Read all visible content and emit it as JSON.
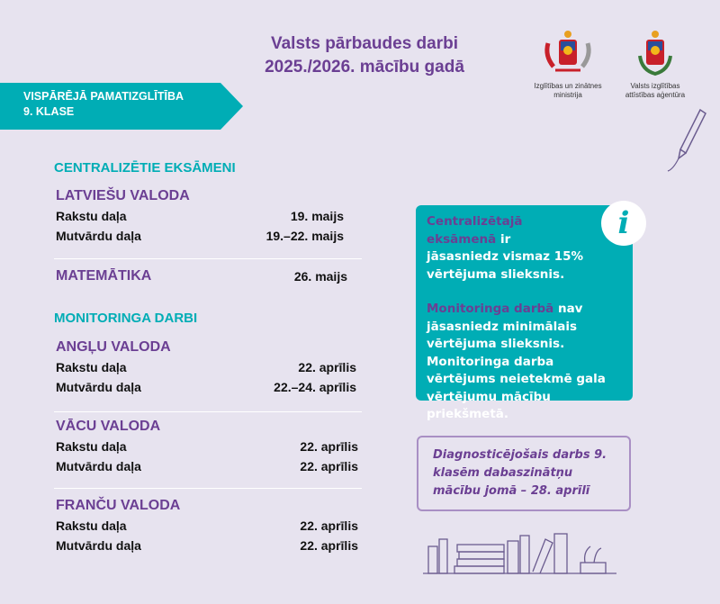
{
  "header": {
    "title_line1": "Valsts pārbaudes darbi",
    "title_line2": "2025./2026. mācību gadā"
  },
  "logos": [
    {
      "name": "Izglītības un zinātnes ministrija",
      "line1": "Izglītības un zinātnes",
      "line2": "ministrija"
    },
    {
      "name": "Valsts izglītības attīstības aģentūra",
      "line1": "Valsts izglītības",
      "line2": "attīstības aģentūra"
    }
  ],
  "banner": {
    "line1": "VISPĀRĒJĀ PAMATIZGLĪTĪBA",
    "line2": "9. KLASE"
  },
  "centralized": {
    "heading": "CENTRALIZĒTIE EKSĀMENI",
    "latvian": {
      "title": "LATVIEŠU VALODA",
      "rows": [
        {
          "label": "Rakstu daļa",
          "date": "19. maijs"
        },
        {
          "label": "Mutvārdu daļa",
          "date": "19.–22. maijs"
        }
      ]
    },
    "math": {
      "title": "MATEMĀTIKA",
      "date": "26. maijs"
    }
  },
  "monitoring": {
    "heading": "MONITORINGA DARBI",
    "subjects": [
      {
        "title": "ANGĻU VALODA",
        "rows": [
          {
            "label": "Rakstu daļa",
            "date": "22. aprīlis"
          },
          {
            "label": "Mutvārdu daļa",
            "date": "22.–24. aprīlis"
          }
        ]
      },
      {
        "title": "VĀCU VALODA",
        "rows": [
          {
            "label": "Rakstu daļa",
            "date": "22. aprīlis"
          },
          {
            "label": "Mutvārdu daļa",
            "date": "22. aprīlis"
          }
        ]
      },
      {
        "title": "FRANČU VALODA",
        "rows": [
          {
            "label": "Rakstu daļa",
            "date": "22. aprīlis"
          },
          {
            "label": "Mutvārdu daļa",
            "date": "22. aprīlis"
          }
        ]
      }
    ]
  },
  "info": {
    "p1_highlight": "Centralizētajā eksāmenā",
    "p1_rest": "ir jāsasniedz vismaz 15% vērtējuma slieksnis.",
    "p2_highlight": "Monitoringa darbā",
    "p2_rest": "nav jāsasniedz minimālais vērtējuma slieksnis. Monitoringa darba vērtējums neietekmē gala vērtējumu mācību priekšmetā.",
    "icon": "info-icon"
  },
  "diagnostic": {
    "text": "Diagnosticējošais darbs 9. klasēm dabaszinātņu mācību jomā – 28. aprīlī"
  },
  "colors": {
    "teal": "#00adb5",
    "purple": "#6b3f93",
    "background": "#e7e3ef"
  }
}
